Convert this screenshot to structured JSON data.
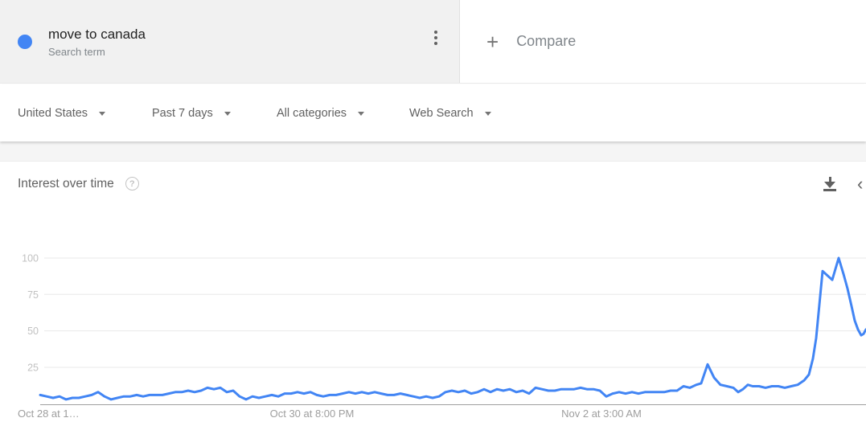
{
  "term_chip": {
    "label": "move to canada",
    "sublabel": "Search term",
    "dot_color": "#4285f4"
  },
  "compare": {
    "plus": "+",
    "label": "Compare"
  },
  "filters": [
    {
      "label": "United States"
    },
    {
      "label": "Past 7 days"
    },
    {
      "label": "All categories"
    },
    {
      "label": "Web Search"
    }
  ],
  "card": {
    "title": "Interest over time",
    "help_glyph": "?",
    "collapse_glyph": "‹"
  },
  "chart_data": {
    "type": "line",
    "title": "Interest over time",
    "series_name": "move to canada",
    "line_color": "#4285f4",
    "grid_color": "#e8e8e8",
    "axis_color": "#9e9e9e",
    "ytick_color": "#c1c1c1",
    "xtick_color": "#9e9e9e",
    "ylim": [
      0,
      100
    ],
    "y_ticks": [
      25,
      50,
      75,
      100
    ],
    "grid": true,
    "legend_position": "none",
    "x_axis_labels": [
      {
        "text": "Oct 28 at 1…",
        "x": 22,
        "align": "left"
      },
      {
        "text": "Oct 30 at 8:00 PM",
        "x": 388,
        "align": "center"
      },
      {
        "text": "Nov 2 at 3:00 AM",
        "x": 748,
        "align": "center"
      }
    ],
    "points": [
      [
        50,
        6
      ],
      [
        58,
        5
      ],
      [
        66,
        4
      ],
      [
        74,
        5
      ],
      [
        82,
        3
      ],
      [
        90,
        4
      ],
      [
        98,
        4
      ],
      [
        106,
        5
      ],
      [
        114,
        6
      ],
      [
        122,
        8
      ],
      [
        130,
        5
      ],
      [
        138,
        3
      ],
      [
        146,
        4
      ],
      [
        154,
        5
      ],
      [
        162,
        5
      ],
      [
        170,
        6
      ],
      [
        178,
        5
      ],
      [
        186,
        6
      ],
      [
        194,
        6
      ],
      [
        202,
        6
      ],
      [
        210,
        7
      ],
      [
        218,
        8
      ],
      [
        226,
        8
      ],
      [
        234,
        9
      ],
      [
        242,
        8
      ],
      [
        250,
        9
      ],
      [
        258,
        11
      ],
      [
        266,
        10
      ],
      [
        274,
        11
      ],
      [
        282,
        8
      ],
      [
        290,
        9
      ],
      [
        298,
        5
      ],
      [
        306,
        3
      ],
      [
        314,
        5
      ],
      [
        322,
        4
      ],
      [
        330,
        5
      ],
      [
        338,
        6
      ],
      [
        346,
        5
      ],
      [
        354,
        7
      ],
      [
        362,
        7
      ],
      [
        370,
        8
      ],
      [
        378,
        7
      ],
      [
        386,
        8
      ],
      [
        394,
        6
      ],
      [
        402,
        5
      ],
      [
        410,
        6
      ],
      [
        418,
        6
      ],
      [
        426,
        7
      ],
      [
        434,
        8
      ],
      [
        442,
        7
      ],
      [
        450,
        8
      ],
      [
        458,
        7
      ],
      [
        466,
        8
      ],
      [
        474,
        7
      ],
      [
        482,
        6
      ],
      [
        490,
        6
      ],
      [
        498,
        7
      ],
      [
        506,
        6
      ],
      [
        514,
        5
      ],
      [
        522,
        4
      ],
      [
        530,
        5
      ],
      [
        538,
        4
      ],
      [
        546,
        5
      ],
      [
        554,
        8
      ],
      [
        562,
        9
      ],
      [
        570,
        8
      ],
      [
        578,
        9
      ],
      [
        586,
        7
      ],
      [
        594,
        8
      ],
      [
        602,
        10
      ],
      [
        610,
        8
      ],
      [
        618,
        10
      ],
      [
        626,
        9
      ],
      [
        634,
        10
      ],
      [
        642,
        8
      ],
      [
        650,
        9
      ],
      [
        658,
        7
      ],
      [
        666,
        11
      ],
      [
        674,
        10
      ],
      [
        682,
        9
      ],
      [
        690,
        9
      ],
      [
        698,
        10
      ],
      [
        706,
        10
      ],
      [
        714,
        10
      ],
      [
        722,
        11
      ],
      [
        730,
        10
      ],
      [
        738,
        10
      ],
      [
        746,
        9
      ],
      [
        754,
        5
      ],
      [
        762,
        7
      ],
      [
        770,
        8
      ],
      [
        778,
        7
      ],
      [
        786,
        8
      ],
      [
        794,
        7
      ],
      [
        802,
        8
      ],
      [
        810,
        8
      ],
      [
        818,
        8
      ],
      [
        826,
        8
      ],
      [
        834,
        9
      ],
      [
        842,
        9
      ],
      [
        850,
        12
      ],
      [
        858,
        11
      ],
      [
        866,
        13
      ],
      [
        872,
        14
      ],
      [
        880,
        27
      ],
      [
        888,
        18
      ],
      [
        896,
        13
      ],
      [
        904,
        12
      ],
      [
        912,
        11
      ],
      [
        918,
        8
      ],
      [
        924,
        10
      ],
      [
        930,
        13
      ],
      [
        936,
        12
      ],
      [
        944,
        12
      ],
      [
        952,
        11
      ],
      [
        960,
        12
      ],
      [
        968,
        12
      ],
      [
        976,
        11
      ],
      [
        984,
        12
      ],
      [
        992,
        13
      ],
      [
        1000,
        16
      ],
      [
        1006,
        20
      ],
      [
        1011,
        31
      ],
      [
        1015,
        45
      ],
      [
        1019,
        68
      ],
      [
        1023,
        91
      ],
      [
        1029,
        88
      ],
      [
        1035,
        85
      ],
      [
        1043,
        100
      ],
      [
        1049,
        89
      ],
      [
        1054,
        79
      ],
      [
        1059,
        67
      ],
      [
        1063,
        57
      ],
      [
        1067,
        51
      ],
      [
        1071,
        47
      ],
      [
        1074,
        48
      ],
      [
        1077,
        51
      ]
    ]
  }
}
